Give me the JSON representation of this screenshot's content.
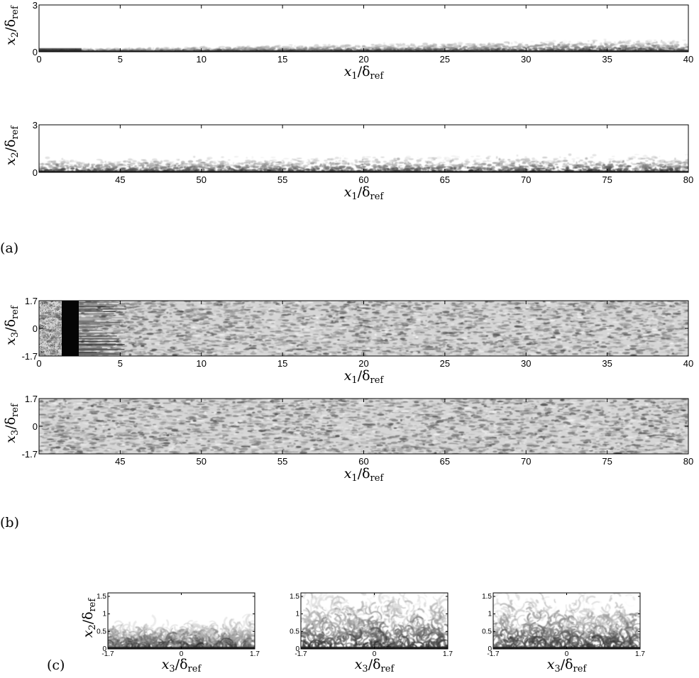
{
  "figure": {
    "panel_labels": {
      "a": "(a)",
      "b": "(b)",
      "c": "(c)"
    },
    "label_parts": {
      "x1": {
        "var": "x",
        "sub": "1",
        "ref": "/δ",
        "ref_sub": "ref"
      },
      "x2": {
        "var": "x",
        "sub": "2",
        "ref": "/δ",
        "ref_sub": "ref"
      },
      "x3": {
        "var": "x",
        "sub": "3",
        "ref": "/δ",
        "ref_sub": "ref"
      }
    },
    "colors": {
      "background": "#ffffff",
      "ink": "#000000",
      "field_dark": "#111111",
      "field_light": "#e8e8e8"
    }
  },
  "chart_data": [
    {
      "id": "a1",
      "type": "heatmap",
      "xlim": [
        0,
        40
      ],
      "ylim": [
        0,
        3
      ],
      "xticks": [
        "0",
        "5",
        "10",
        "15",
        "20",
        "25",
        "30",
        "35",
        "40"
      ],
      "yticks": [
        "0",
        "3"
      ],
      "xlabel": "x1/δref",
      "ylabel": "x2/δref"
    },
    {
      "id": "a2",
      "type": "heatmap",
      "xlim": [
        40,
        80
      ],
      "ylim": [
        0,
        3
      ],
      "xticks": [
        "45",
        "50",
        "55",
        "60",
        "65",
        "70",
        "75",
        "80"
      ],
      "yticks": [
        "0",
        "3"
      ],
      "xlabel": "x1/δref",
      "ylabel": "x2/δref"
    },
    {
      "id": "b1",
      "type": "heatmap",
      "xlim": [
        0,
        40
      ],
      "ylim": [
        -1.7,
        1.7
      ],
      "xticks": [
        "0",
        "5",
        "10",
        "15",
        "20",
        "25",
        "30",
        "35",
        "40"
      ],
      "yticks": [
        "-1.7",
        "0",
        "1.7"
      ],
      "xlabel": "x1/δref",
      "ylabel": "x3/δref"
    },
    {
      "id": "b2",
      "type": "heatmap",
      "xlim": [
        40,
        80
      ],
      "ylim": [
        -1.7,
        1.7
      ],
      "xticks": [
        "45",
        "50",
        "55",
        "60",
        "65",
        "70",
        "75",
        "80"
      ],
      "yticks": [
        "-1.7",
        "0",
        "1.7"
      ],
      "xlabel": "x1/δref",
      "ylabel": "x3/δref"
    },
    {
      "id": "c1",
      "type": "heatmap",
      "xlim": [
        -1.7,
        1.7
      ],
      "ylim": [
        0,
        1.6
      ],
      "xticks": [
        "-1.7",
        "0",
        "1.7"
      ],
      "yticks": [
        "0",
        "0.5",
        "1",
        "1.5"
      ],
      "xlabel": "x3/δref",
      "ylabel": "x2/δref"
    },
    {
      "id": "c2",
      "type": "heatmap",
      "xlim": [
        -1.7,
        1.7
      ],
      "ylim": [
        0,
        1.6
      ],
      "xticks": [
        "-1.7",
        "0",
        "1.7"
      ],
      "yticks": [
        "0",
        "0.5",
        "1",
        "1.5"
      ],
      "xlabel": "x3/δref",
      "ylabel": ""
    },
    {
      "id": "c3",
      "type": "heatmap",
      "xlim": [
        -1.7,
        1.7
      ],
      "ylim": [
        0,
        1.6
      ],
      "xticks": [
        "-1.7",
        "0",
        "1.7"
      ],
      "yticks": [
        "0",
        "0.5",
        "1",
        "1.5"
      ],
      "xlabel": "x3/δref",
      "ylabel": ""
    }
  ]
}
